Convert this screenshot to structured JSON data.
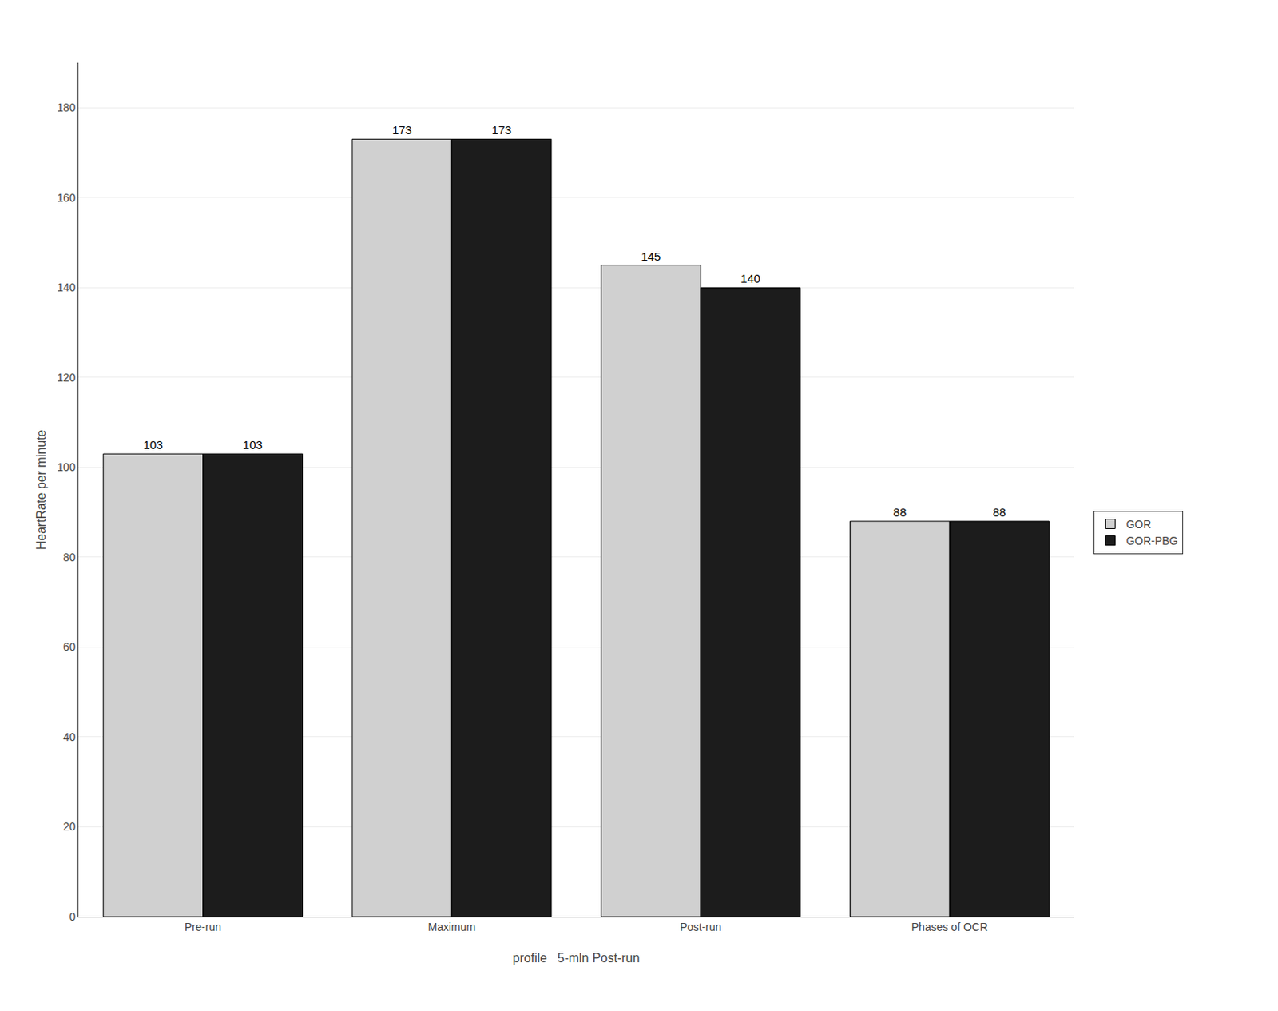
{
  "chart_data": {
    "type": "bar",
    "categories": [
      "Pre-run",
      "Maximum",
      "Post-run",
      "Phases of OCR"
    ],
    "series": [
      {
        "name": "GOR",
        "color": "#d0d0d0",
        "values": [
          103,
          173,
          145,
          88
        ]
      },
      {
        "name": "GOR-PBG",
        "color": "#1c1c1c",
        "values": [
          103,
          173,
          140,
          88
        ]
      }
    ],
    "xlabel": "profile   5-mln Post-run",
    "ylabel": "HeartRate per minute",
    "ylim": [
      0,
      190
    ],
    "yticks": [
      0,
      20,
      40,
      60,
      80,
      100,
      120,
      140,
      160,
      180
    ],
    "grid": true,
    "legend": "right",
    "data_labels": true
  }
}
